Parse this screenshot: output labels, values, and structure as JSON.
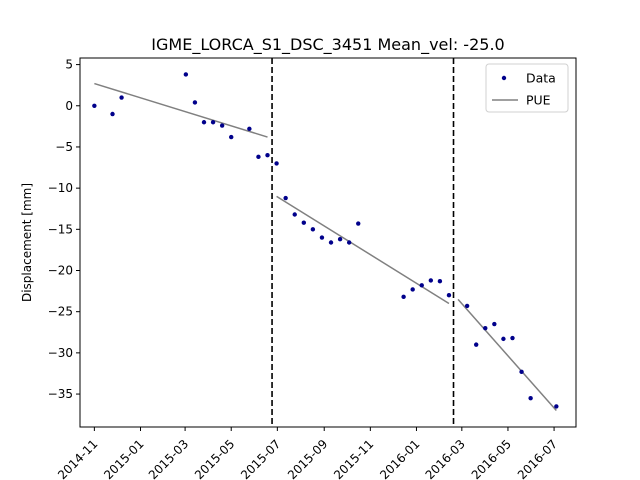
{
  "chart_data": {
    "type": "scatter",
    "title": "IGME_LORCA_S1_DSC_3451    Mean_vel: -25.0",
    "xlabel": "",
    "ylabel": "Displacement [mm]",
    "x_axis_type": "date",
    "xlim": [
      "2014-10-13",
      "2016-07-30"
    ],
    "ylim": [
      -39,
      5.8
    ],
    "x_ticks": [
      "2014-11",
      "2015-01",
      "2015-03",
      "2015-05",
      "2015-07",
      "2015-09",
      "2015-11",
      "2016-01",
      "2016-03",
      "2016-05",
      "2016-07"
    ],
    "y_ticks": [
      5,
      0,
      -5,
      -10,
      -15,
      -20,
      -25,
      -30,
      -35
    ],
    "grid": false,
    "legend_position": "top-right",
    "series": [
      {
        "name": "Data",
        "type": "scatter",
        "color": "#00008b",
        "points": [
          {
            "x": "2014-11-01",
            "y": 0.0
          },
          {
            "x": "2014-11-25",
            "y": -1.0
          },
          {
            "x": "2014-12-07",
            "y": 1.0
          },
          {
            "x": "2015-03-02",
            "y": 3.8
          },
          {
            "x": "2015-03-14",
            "y": 0.4
          },
          {
            "x": "2015-03-26",
            "y": -2.0
          },
          {
            "x": "2015-04-07",
            "y": -2.0
          },
          {
            "x": "2015-04-19",
            "y": -2.4
          },
          {
            "x": "2015-05-01",
            "y": -3.8
          },
          {
            "x": "2015-05-25",
            "y": -2.8
          },
          {
            "x": "2015-06-06",
            "y": -6.2
          },
          {
            "x": "2015-06-18",
            "y": -6.0
          },
          {
            "x": "2015-06-30",
            "y": -7.0
          },
          {
            "x": "2015-07-12",
            "y": -11.2
          },
          {
            "x": "2015-07-24",
            "y": -13.2
          },
          {
            "x": "2015-08-05",
            "y": -14.2
          },
          {
            "x": "2015-08-17",
            "y": -15.0
          },
          {
            "x": "2015-08-29",
            "y": -16.0
          },
          {
            "x": "2015-09-10",
            "y": -16.6
          },
          {
            "x": "2015-09-22",
            "y": -16.2
          },
          {
            "x": "2015-10-04",
            "y": -16.6
          },
          {
            "x": "2015-10-16",
            "y": -14.3
          },
          {
            "x": "2015-12-15",
            "y": -23.2
          },
          {
            "x": "2015-12-27",
            "y": -22.3
          },
          {
            "x": "2016-01-08",
            "y": -21.8
          },
          {
            "x": "2016-01-20",
            "y": -21.2
          },
          {
            "x": "2016-02-01",
            "y": -21.3
          },
          {
            "x": "2016-02-13",
            "y": -23.0
          },
          {
            "x": "2016-03-08",
            "y": -24.3
          },
          {
            "x": "2016-03-20",
            "y": -29.0
          },
          {
            "x": "2016-04-01",
            "y": -27.0
          },
          {
            "x": "2016-04-13",
            "y": -26.5
          },
          {
            "x": "2016-04-25",
            "y": -28.3
          },
          {
            "x": "2016-05-07",
            "y": -28.2
          },
          {
            "x": "2016-05-19",
            "y": -32.3
          },
          {
            "x": "2016-05-31",
            "y": -35.5
          },
          {
            "x": "2016-07-04",
            "y": -36.5
          }
        ]
      },
      {
        "name": "PUE",
        "type": "line",
        "color": "#808080",
        "segments": [
          [
            {
              "x": "2014-11-01",
              "y": 2.7
            },
            {
              "x": "2015-06-18",
              "y": -3.8
            }
          ],
          [
            {
              "x": "2015-06-30",
              "y": -11.0
            },
            {
              "x": "2016-02-13",
              "y": -24.0
            }
          ],
          [
            {
              "x": "2016-02-25",
              "y": -23.5
            },
            {
              "x": "2016-07-04",
              "y": -37.0
            }
          ]
        ]
      }
    ],
    "vertical_lines": [
      {
        "x": "2015-06-24",
        "style": "dashed",
        "color": "#000000"
      },
      {
        "x": "2016-02-19",
        "style": "dashed",
        "color": "#000000"
      }
    ]
  }
}
